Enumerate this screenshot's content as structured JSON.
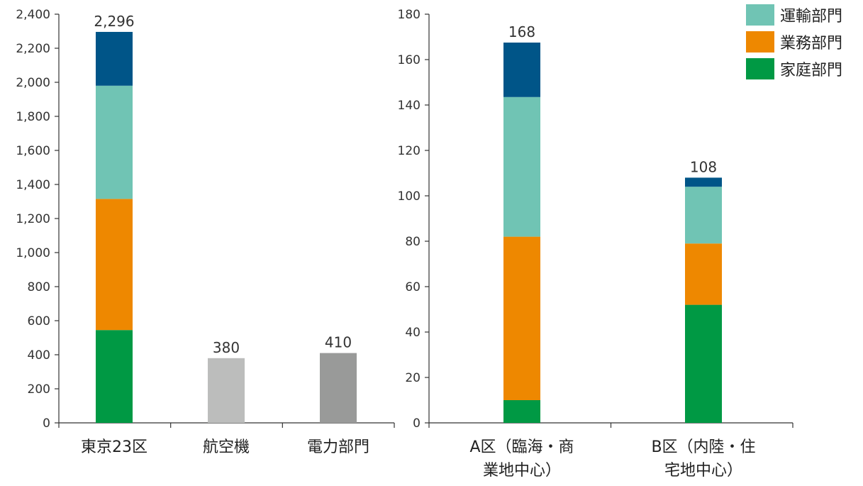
{
  "chart_data": [
    {
      "type": "bar",
      "ylim": [
        0,
        2400
      ],
      "yticks": [
        0,
        200,
        400,
        600,
        800,
        1000,
        1200,
        1400,
        1600,
        1800,
        2000,
        2200,
        2400
      ],
      "ytick_labels": [
        "0",
        "200",
        "400",
        "600",
        "800",
        "1,000",
        "1,200",
        "1,400",
        "1,600",
        "1,800",
        "2,000",
        "2,200",
        "2,400"
      ],
      "categories": [
        "東京23区",
        "航空機",
        "電力部門"
      ],
      "bars": [
        {
          "category": "東京23区",
          "total_label": "2,296",
          "stack": [
            {
              "series": "家庭部門",
              "value": 545,
              "color": "#009944"
            },
            {
              "series": "業務部門",
              "value": 770,
              "color": "#EE8800"
            },
            {
              "series": "運輸部門",
              "value": 665,
              "color": "#70C4B4"
            },
            {
              "series": "",
              "value": 316,
              "color": "#005588"
            }
          ]
        },
        {
          "category": "航空機",
          "total_label": "380",
          "stack": [
            {
              "series": "",
              "value": 380,
              "color": "#BCBDBC"
            }
          ]
        },
        {
          "category": "電力部門",
          "total_label": "410",
          "stack": [
            {
              "series": "",
              "value": 410,
              "color": "#999A99"
            }
          ]
        }
      ]
    },
    {
      "type": "bar",
      "ylim": [
        0,
        180
      ],
      "yticks": [
        0,
        20,
        40,
        60,
        80,
        100,
        120,
        140,
        160,
        180
      ],
      "ytick_labels": [
        "0",
        "20",
        "40",
        "60",
        "80",
        "100",
        "120",
        "140",
        "160",
        "180"
      ],
      "categories": [
        [
          "A区（臨海・商",
          "業地中心）"
        ],
        [
          "B区（内陸・住",
          "宅地中心）"
        ]
      ],
      "bars": [
        {
          "category": "A区（臨海・商業地中心）",
          "total_label": "168",
          "stack": [
            {
              "series": "家庭部門",
              "value": 10,
              "color": "#009944"
            },
            {
              "series": "業務部門",
              "value": 72,
              "color": "#EE8800"
            },
            {
              "series": "運輸部門",
              "value": 61.5,
              "color": "#70C4B4"
            },
            {
              "series": "",
              "value": 24,
              "color": "#005588"
            }
          ]
        },
        {
          "category": "B区（内陸・住宅地中心）",
          "total_label": "108",
          "stack": [
            {
              "series": "家庭部門",
              "value": 52,
              "color": "#009944"
            },
            {
              "series": "業務部門",
              "value": 27,
              "color": "#EE8800"
            },
            {
              "series": "運輸部門",
              "value": 25,
              "color": "#70C4B4"
            },
            {
              "series": "",
              "value": 4,
              "color": "#005588"
            }
          ]
        }
      ]
    }
  ],
  "legend": {
    "placement": "top-right",
    "items": [
      {
        "label": "運輸部門",
        "color": "#70C4B4"
      },
      {
        "label": "業務部門",
        "color": "#EE8800"
      },
      {
        "label": "家庭部門",
        "color": "#009944"
      }
    ]
  }
}
